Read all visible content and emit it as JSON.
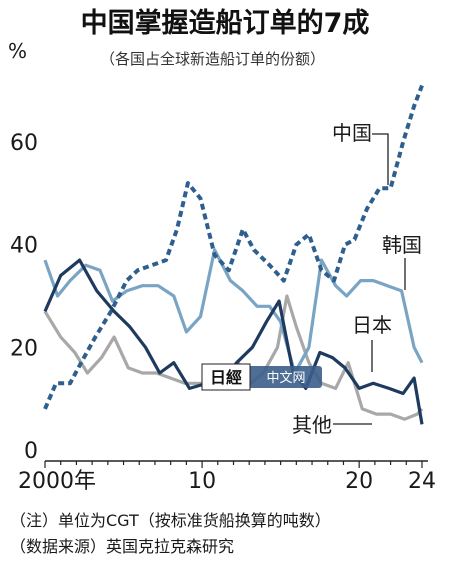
{
  "chart_data": {
    "type": "line",
    "title": "中国掌握造船订单的7成",
    "subtitle": "（各国占全球新造船订单的份额）",
    "ylabel": "%",
    "ylim": [
      0,
      75
    ],
    "yticks": [
      0,
      20,
      40,
      60
    ],
    "xlim": [
      2000,
      2024
    ],
    "xticks": [
      {
        "value": 2000,
        "label": "2000年"
      },
      {
        "value": 2010,
        "label": "10"
      },
      {
        "value": 2020,
        "label": "20"
      },
      {
        "value": 2024,
        "label": "24"
      }
    ],
    "grid": false,
    "legend": "inline labels",
    "series": [
      {
        "name": "中国",
        "color": "#2f5f8f",
        "style": "dashed",
        "x": [
          2000,
          2000.7,
          2001.6,
          2002.3,
          2003.2,
          2004.2,
          2005.2,
          2005.9,
          2006.8,
          2007.7,
          2008.4,
          2009.1,
          2009.9,
          2010.8,
          2011.7,
          2012.6,
          2013.3,
          2014.3,
          2015.2,
          2016.0,
          2016.8,
          2017.6,
          2018.4,
          2019.1,
          2019.7,
          2020.5,
          2021.3,
          2022.0,
          2022.8,
          2023.5,
          2024.0
        ],
        "values": [
          8,
          13,
          13,
          17,
          22,
          27,
          33,
          35,
          36,
          37,
          43,
          52,
          49,
          38,
          35,
          43,
          39,
          36,
          33,
          40,
          42,
          35,
          33,
          40,
          41,
          47,
          51,
          51,
          60,
          67,
          71
        ]
      },
      {
        "name": "韩国",
        "color": "#7aa4c4",
        "style": "solid",
        "x": [
          2000,
          2000.8,
          2001.6,
          2002.6,
          2003.5,
          2004.3,
          2005.2,
          2006.2,
          2007.2,
          2008.2,
          2009.0,
          2009.9,
          2010.8,
          2011.8,
          2012.6,
          2013.5,
          2014.3,
          2015.0,
          2015.9,
          2016.8,
          2017.6,
          2018.5,
          2019.2,
          2020.1,
          2020.9,
          2021.8,
          2022.7,
          2023.5,
          2024.0
        ],
        "values": [
          37,
          30,
          33,
          36,
          35,
          29,
          31,
          32,
          32,
          30,
          23,
          26,
          39,
          33,
          31,
          28,
          28,
          25,
          15,
          20,
          37,
          32,
          30,
          33,
          33,
          32,
          31,
          20,
          17
        ]
      },
      {
        "name": "日本",
        "color": "#1e3a5f",
        "style": "solid",
        "x": [
          2000,
          2001.0,
          2002.2,
          2003.3,
          2004.4,
          2005.4,
          2006.4,
          2007.3,
          2008.2,
          2009.2,
          2010.3,
          2011.2,
          2012.2,
          2013.2,
          2014.1,
          2014.9,
          2015.8,
          2016.6,
          2017.5,
          2018.3,
          2019.1,
          2020.0,
          2020.9,
          2021.9,
          2022.8,
          2023.5,
          2024.0
        ],
        "values": [
          27,
          34,
          37,
          31,
          27,
          24,
          20,
          15,
          17,
          12,
          13,
          13,
          17,
          20,
          25,
          29,
          15,
          12,
          19,
          18,
          16,
          12,
          13,
          12,
          11,
          14,
          5
        ]
      },
      {
        "name": "其他",
        "color": "#a8a8a8",
        "style": "solid",
        "x": [
          2000,
          2001.0,
          2001.9,
          2002.7,
          2003.6,
          2004.4,
          2005.3,
          2006.2,
          2007.1,
          2008.0,
          2008.9,
          2009.7,
          2010.5,
          2011.4,
          2012.3,
          2013.1,
          2013.9,
          2014.8,
          2015.4,
          2016.0,
          2016.8,
          2017.6,
          2018.5,
          2019.3,
          2020.2,
          2021.1,
          2022.0,
          2022.9,
          2023.7,
          2024.0
        ],
        "values": [
          27,
          22,
          19,
          15,
          18,
          22,
          16,
          15,
          15,
          14,
          13,
          13,
          13,
          14,
          17,
          13,
          15,
          20,
          30,
          24,
          17,
          13,
          12,
          17,
          8,
          7,
          7,
          6,
          7,
          8
        ]
      }
    ],
    "notes": [
      "（注）单位为CGT（按标准货船换算的吨数）",
      "（数据来源）英国克拉克森研究"
    ]
  },
  "watermark": {
    "logo_text": "日經",
    "sub_text": "中文网"
  }
}
